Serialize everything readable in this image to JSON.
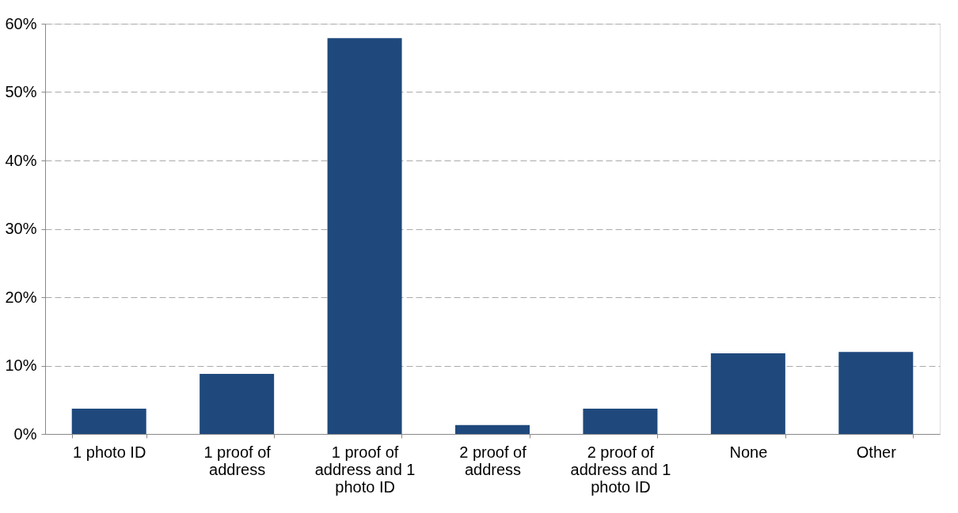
{
  "chart_data": {
    "type": "bar",
    "categories": [
      "1 photo ID",
      "1 proof of address",
      "1 proof of address and 1 photo ID",
      "2 proof of address",
      "2 proof of address and 1 photo ID",
      "None",
      "Other"
    ],
    "values": [
      3.7,
      8.8,
      57.9,
      1.3,
      3.7,
      11.8,
      12.0
    ],
    "color": "#1f497d",
    "ylim": [
      0,
      60
    ],
    "yticks": [
      {
        "value": 0,
        "label": "0%"
      },
      {
        "value": 10,
        "label": "10%"
      },
      {
        "value": 20,
        "label": "20%"
      },
      {
        "value": 30,
        "label": "30%"
      },
      {
        "value": 40,
        "label": "40%"
      },
      {
        "value": 50,
        "label": "50%"
      },
      {
        "value": 60,
        "label": "60%"
      }
    ],
    "grid": "y"
  }
}
